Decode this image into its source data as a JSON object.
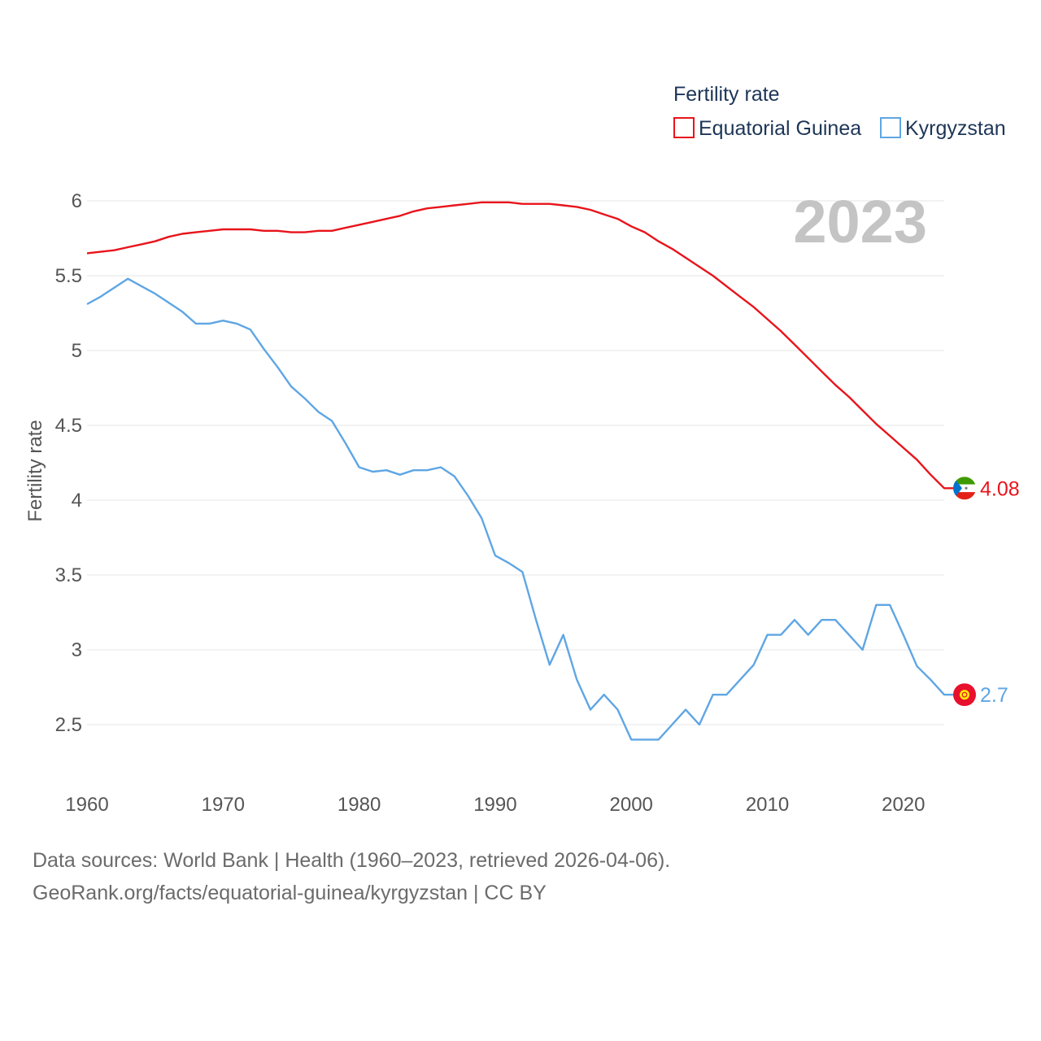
{
  "legend": {
    "title": "Fertility rate",
    "items": [
      {
        "label": "Equatorial Guinea",
        "color": "#e8141b"
      },
      {
        "label": "Kyrgyzstan",
        "color": "#5fa6e4"
      }
    ]
  },
  "year_label": "2023",
  "footer": {
    "line1": "Data sources: World Bank | Health (1960–2023, retrieved 2026-04-06).",
    "line2": "GeoRank.org/facts/equatorial-guinea/kyrgyzstan | CC BY"
  },
  "chart_data": {
    "type": "line",
    "title": "Fertility rate",
    "xlabel": "",
    "ylabel": "Fertility rate",
    "xlim": [
      1960,
      2023
    ],
    "ylim": [
      2.1,
      6.0
    ],
    "x_ticks": [
      1960,
      1970,
      1980,
      1990,
      2000,
      2010,
      2020
    ],
    "y_ticks": [
      2.5,
      3,
      3.5,
      4,
      4.5,
      5,
      5.5,
      6
    ],
    "y_tick_labels": [
      "2.5",
      "3",
      "3.5",
      "4",
      "4.5",
      "5",
      "5.5",
      "6"
    ],
    "x": [
      1960,
      1961,
      1962,
      1963,
      1964,
      1965,
      1966,
      1967,
      1968,
      1969,
      1970,
      1971,
      1972,
      1973,
      1974,
      1975,
      1976,
      1977,
      1978,
      1979,
      1980,
      1981,
      1982,
      1983,
      1984,
      1985,
      1986,
      1987,
      1988,
      1989,
      1990,
      1991,
      1992,
      1993,
      1994,
      1995,
      1996,
      1997,
      1998,
      1999,
      2000,
      2001,
      2002,
      2003,
      2004,
      2005,
      2006,
      2007,
      2008,
      2009,
      2010,
      2011,
      2012,
      2013,
      2014,
      2015,
      2016,
      2017,
      2018,
      2019,
      2020,
      2021,
      2022,
      2023
    ],
    "series": [
      {
        "name": "Equatorial Guinea",
        "color": "#e8141b",
        "end_label": "4.08",
        "values": [
          5.65,
          5.66,
          5.67,
          5.69,
          5.71,
          5.73,
          5.76,
          5.78,
          5.79,
          5.8,
          5.81,
          5.81,
          5.81,
          5.8,
          5.8,
          5.79,
          5.79,
          5.8,
          5.8,
          5.82,
          5.84,
          5.86,
          5.88,
          5.9,
          5.93,
          5.95,
          5.96,
          5.97,
          5.98,
          5.99,
          5.99,
          5.99,
          5.98,
          5.98,
          5.98,
          5.97,
          5.96,
          5.94,
          5.91,
          5.88,
          5.83,
          5.79,
          5.73,
          5.68,
          5.62,
          5.56,
          5.5,
          5.43,
          5.36,
          5.29,
          5.21,
          5.13,
          5.04,
          4.95,
          4.86,
          4.77,
          4.69,
          4.6,
          4.51,
          4.43,
          4.35,
          4.27,
          4.17,
          4.08
        ]
      },
      {
        "name": "Kyrgyzstan",
        "color": "#5fa6e4",
        "end_label": "2.7",
        "values": [
          5.31,
          5.36,
          5.42,
          5.48,
          5.43,
          5.38,
          5.32,
          5.26,
          5.18,
          5.18,
          5.2,
          5.18,
          5.14,
          5.01,
          4.89,
          4.76,
          4.68,
          4.59,
          4.53,
          4.38,
          4.22,
          4.19,
          4.2,
          4.17,
          4.2,
          4.2,
          4.22,
          4.16,
          4.03,
          3.88,
          3.63,
          3.58,
          3.52,
          3.2,
          2.9,
          3.1,
          2.8,
          2.6,
          2.7,
          2.6,
          2.4,
          2.4,
          2.4,
          2.5,
          2.6,
          2.5,
          2.7,
          2.7,
          2.8,
          2.9,
          3.1,
          3.1,
          3.2,
          3.1,
          3.2,
          3.2,
          3.1,
          3.0,
          3.3,
          3.3,
          3.1,
          2.89,
          2.8,
          2.7
        ]
      }
    ]
  }
}
